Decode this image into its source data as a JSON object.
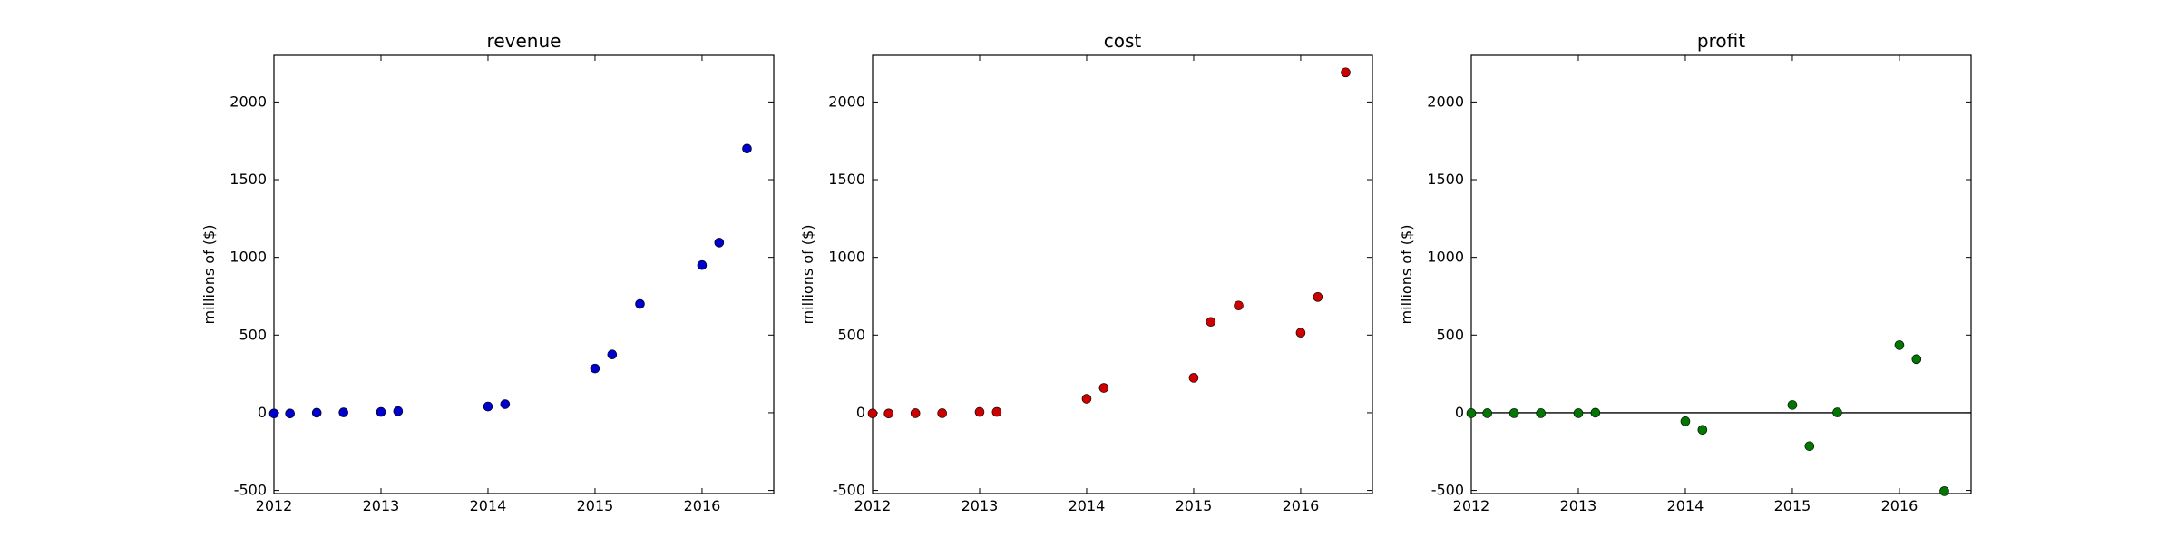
{
  "chart_data": [
    {
      "type": "scatter",
      "title": "revenue",
      "xlabel": "",
      "ylabel": "millions of ($)",
      "xlim": [
        2012.0,
        2016.67
      ],
      "ylim": [
        -520,
        2300
      ],
      "xticks": [
        2012,
        2013,
        2014,
        2015,
        2016
      ],
      "yticks": [
        -500,
        0,
        500,
        1000,
        1500,
        2000
      ],
      "color": "#0000cc",
      "zero_line": false,
      "grid": false,
      "points": [
        {
          "x": 2012.0,
          "y": -5
        },
        {
          "x": 2012.15,
          "y": -5
        },
        {
          "x": 2012.4,
          "y": 0
        },
        {
          "x": 2012.65,
          "y": 2
        },
        {
          "x": 2013.0,
          "y": 5
        },
        {
          "x": 2013.16,
          "y": 10
        },
        {
          "x": 2014.0,
          "y": 40
        },
        {
          "x": 2014.16,
          "y": 55
        },
        {
          "x": 2015.0,
          "y": 285
        },
        {
          "x": 2015.16,
          "y": 375
        },
        {
          "x": 2015.42,
          "y": 700
        },
        {
          "x": 2016.0,
          "y": 950
        },
        {
          "x": 2016.16,
          "y": 1095
        },
        {
          "x": 2016.42,
          "y": 1700
        }
      ]
    },
    {
      "type": "scatter",
      "title": "cost",
      "xlabel": "",
      "ylabel": "millions of ($)",
      "xlim": [
        2012.0,
        2016.67
      ],
      "ylim": [
        -520,
        2300
      ],
      "xticks": [
        2012,
        2013,
        2014,
        2015,
        2016
      ],
      "yticks": [
        -500,
        0,
        500,
        1000,
        1500,
        2000
      ],
      "color": "#cc0000",
      "zero_line": false,
      "grid": false,
      "points": [
        {
          "x": 2012.0,
          "y": -5
        },
        {
          "x": 2012.15,
          "y": -5
        },
        {
          "x": 2012.4,
          "y": -3
        },
        {
          "x": 2012.65,
          "y": -3
        },
        {
          "x": 2013.0,
          "y": 5
        },
        {
          "x": 2013.16,
          "y": 5
        },
        {
          "x": 2014.0,
          "y": 90
        },
        {
          "x": 2014.16,
          "y": 160
        },
        {
          "x": 2015.0,
          "y": 225
        },
        {
          "x": 2015.16,
          "y": 585
        },
        {
          "x": 2015.42,
          "y": 690
        },
        {
          "x": 2016.0,
          "y": 515
        },
        {
          "x": 2016.16,
          "y": 745
        },
        {
          "x": 2016.42,
          "y": 2190
        }
      ]
    },
    {
      "type": "scatter",
      "title": "profit",
      "xlabel": "",
      "ylabel": "millions of ($)",
      "xlim": [
        2012.0,
        2016.67
      ],
      "ylim": [
        -520,
        2300
      ],
      "xticks": [
        2012,
        2013,
        2014,
        2015,
        2016
      ],
      "yticks": [
        -500,
        0,
        500,
        1000,
        1500,
        2000
      ],
      "color": "#007700",
      "zero_line": true,
      "grid": false,
      "points": [
        {
          "x": 2012.0,
          "y": -3
        },
        {
          "x": 2012.15,
          "y": -3
        },
        {
          "x": 2012.4,
          "y": -3
        },
        {
          "x": 2012.65,
          "y": -3
        },
        {
          "x": 2013.0,
          "y": -3
        },
        {
          "x": 2013.16,
          "y": 0
        },
        {
          "x": 2014.0,
          "y": -55
        },
        {
          "x": 2014.16,
          "y": -110
        },
        {
          "x": 2015.0,
          "y": 50
        },
        {
          "x": 2015.16,
          "y": -215
        },
        {
          "x": 2015.42,
          "y": 2
        },
        {
          "x": 2016.0,
          "y": 435
        },
        {
          "x": 2016.16,
          "y": 345
        },
        {
          "x": 2016.42,
          "y": -505
        }
      ]
    }
  ]
}
